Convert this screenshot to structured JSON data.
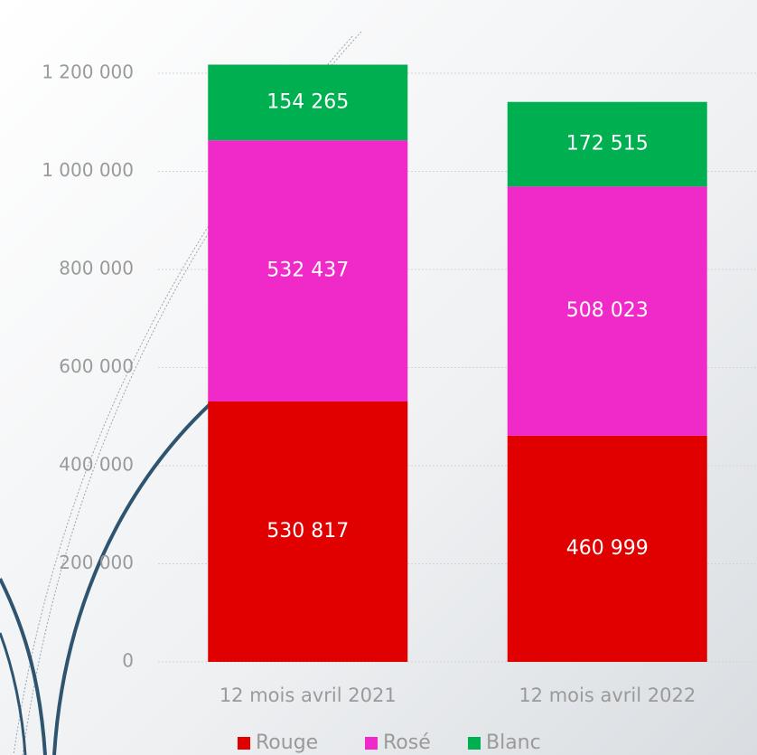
{
  "chart_data": {
    "type": "stacked-bar",
    "categories": [
      "12 mois avril 2021",
      "12 mois avril 2022"
    ],
    "series": [
      {
        "name": "Rouge",
        "color": "#e00000",
        "values": [
          530817,
          460999
        ],
        "value_labels": [
          "530 817",
          "460 999"
        ]
      },
      {
        "name": "Rosé",
        "color": "#f02ac8",
        "values": [
          532437,
          508023
        ],
        "value_labels": [
          "532 437",
          "508 023"
        ]
      },
      {
        "name": "Blanc",
        "color": "#00b050",
        "values": [
          154265,
          172515
        ],
        "value_labels": [
          "154 265",
          "172 515"
        ]
      }
    ],
    "ylim": [
      0,
      1200000
    ],
    "yticks": [
      0,
      {
        "value": 200000,
        "label": "200 000"
      },
      {
        "value": 400000,
        "label": "400 000"
      },
      {
        "value": 600000,
        "label": "600 000"
      },
      {
        "value": 800000,
        "label": "800 000"
      },
      {
        "value": 1000000,
        "label": "1 000 000"
      },
      {
        "value": 1200000,
        "label": "1 200 000"
      }
    ],
    "grid": true,
    "legend": "bottom"
  }
}
